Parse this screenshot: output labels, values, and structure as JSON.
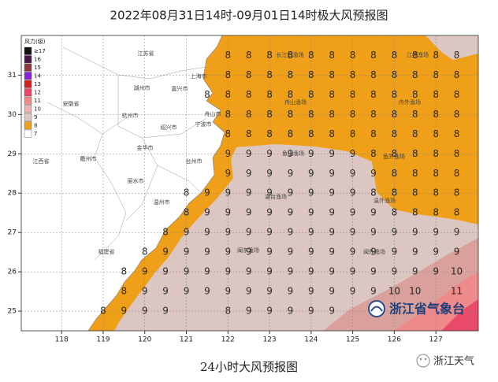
{
  "title": "2022年08月31日14时-09月01日14时极大风预报图",
  "caption": "24小时大风预报图",
  "logo": "浙江省气象台",
  "watermark": "浙江天气",
  "legend": {
    "title": "风力(级)",
    "items": [
      {
        "label": "≥17",
        "color": "#111111"
      },
      {
        "label": "16",
        "color": "#4a1848"
      },
      {
        "label": "15",
        "color": "#8a3a3a"
      },
      {
        "label": "14",
        "color": "#8a22d8"
      },
      {
        "label": "13",
        "color": "#d42020"
      },
      {
        "label": "12",
        "color": "#ec4566"
      },
      {
        "label": "11",
        "color": "#f28a8a"
      },
      {
        "label": "10",
        "color": "#e9b4b0"
      },
      {
        "label": "9",
        "color": "#dcc6c2"
      },
      {
        "label": "8",
        "color": "#f0a018"
      },
      {
        "label": "7",
        "color": "#ffffff"
      }
    ]
  },
  "xticks": [
    118,
    119,
    120,
    121,
    122,
    123,
    124,
    125,
    126,
    127
  ],
  "yticks": [
    25,
    26,
    27,
    28,
    29,
    30,
    31
  ],
  "xlim": [
    117.03,
    128.02
  ],
  "ylim": [
    24.5,
    32.01
  ],
  "places": [
    "江苏省",
    "上海市",
    "湖州市",
    "嘉兴市",
    "长江口渔场",
    "江外渔场",
    "安徽省",
    "杭州市",
    "舟山市",
    "宁波市",
    "舟山渔场",
    "舟外渔场",
    "绍兴市",
    "金华市",
    "江西省",
    "衢州市",
    "台州市",
    "鱼山渔场",
    "鱼外渔场",
    "丽水市",
    "温州市",
    "温台渔场",
    "温外渔场",
    "福建省",
    "闽东渔场",
    "闽外渔场"
  ],
  "wind_grid": [
    [
      null,
      null,
      null,
      null,
      null,
      null,
      8,
      8,
      8,
      8,
      8,
      8,
      8,
      8,
      8,
      8,
      8,
      8
    ],
    [
      null,
      null,
      null,
      null,
      null,
      null,
      8,
      8,
      8,
      8,
      8,
      8,
      8,
      8,
      8,
      8,
      8,
      8
    ],
    [
      null,
      null,
      null,
      null,
      null,
      8,
      8,
      8,
      8,
      8,
      8,
      8,
      8,
      8,
      8,
      8,
      8,
      8
    ],
    [
      null,
      null,
      null,
      null,
      null,
      null,
      8,
      8,
      8,
      8,
      8,
      8,
      8,
      8,
      8,
      8,
      8,
      8
    ],
    [
      null,
      null,
      null,
      null,
      null,
      null,
      8,
      8,
      8,
      8,
      8,
      8,
      8,
      8,
      8,
      8,
      8,
      8
    ],
    [
      null,
      null,
      null,
      null,
      null,
      null,
      9,
      9,
      9,
      9,
      9,
      9,
      9,
      8,
      8,
      8,
      8,
      8
    ],
    [
      null,
      null,
      null,
      null,
      null,
      null,
      9,
      9,
      9,
      9,
      9,
      9,
      9,
      9,
      8,
      8,
      8,
      8
    ],
    [
      null,
      null,
      null,
      null,
      8,
      9,
      9,
      9,
      9,
      9,
      9,
      9,
      9,
      8,
      8,
      8,
      8,
      8
    ],
    [
      null,
      null,
      null,
      null,
      8,
      9,
      9,
      9,
      9,
      9,
      9,
      9,
      9,
      9,
      8,
      8,
      8,
      8
    ],
    [
      null,
      null,
      null,
      8,
      9,
      9,
      9,
      9,
      9,
      9,
      9,
      9,
      9,
      9,
      9,
      9,
      9,
      9
    ],
    [
      null,
      null,
      8,
      9,
      9,
      9,
      9,
      9,
      9,
      9,
      9,
      9,
      9,
      9,
      9,
      9,
      9,
      9
    ],
    [
      null,
      8,
      9,
      9,
      9,
      9,
      9,
      9,
      9,
      9,
      9,
      9,
      9,
      9,
      9,
      9,
      9,
      10
    ],
    [
      null,
      8,
      9,
      9,
      9,
      9,
      9,
      9,
      9,
      9,
      9,
      9,
      9,
      9,
      10,
      10,
      null,
      11
    ],
    [
      8,
      9,
      9,
      9,
      null,
      null,
      8,
      9,
      9,
      9,
      9,
      9,
      null,
      null,
      null,
      null,
      null,
      null
    ]
  ]
}
